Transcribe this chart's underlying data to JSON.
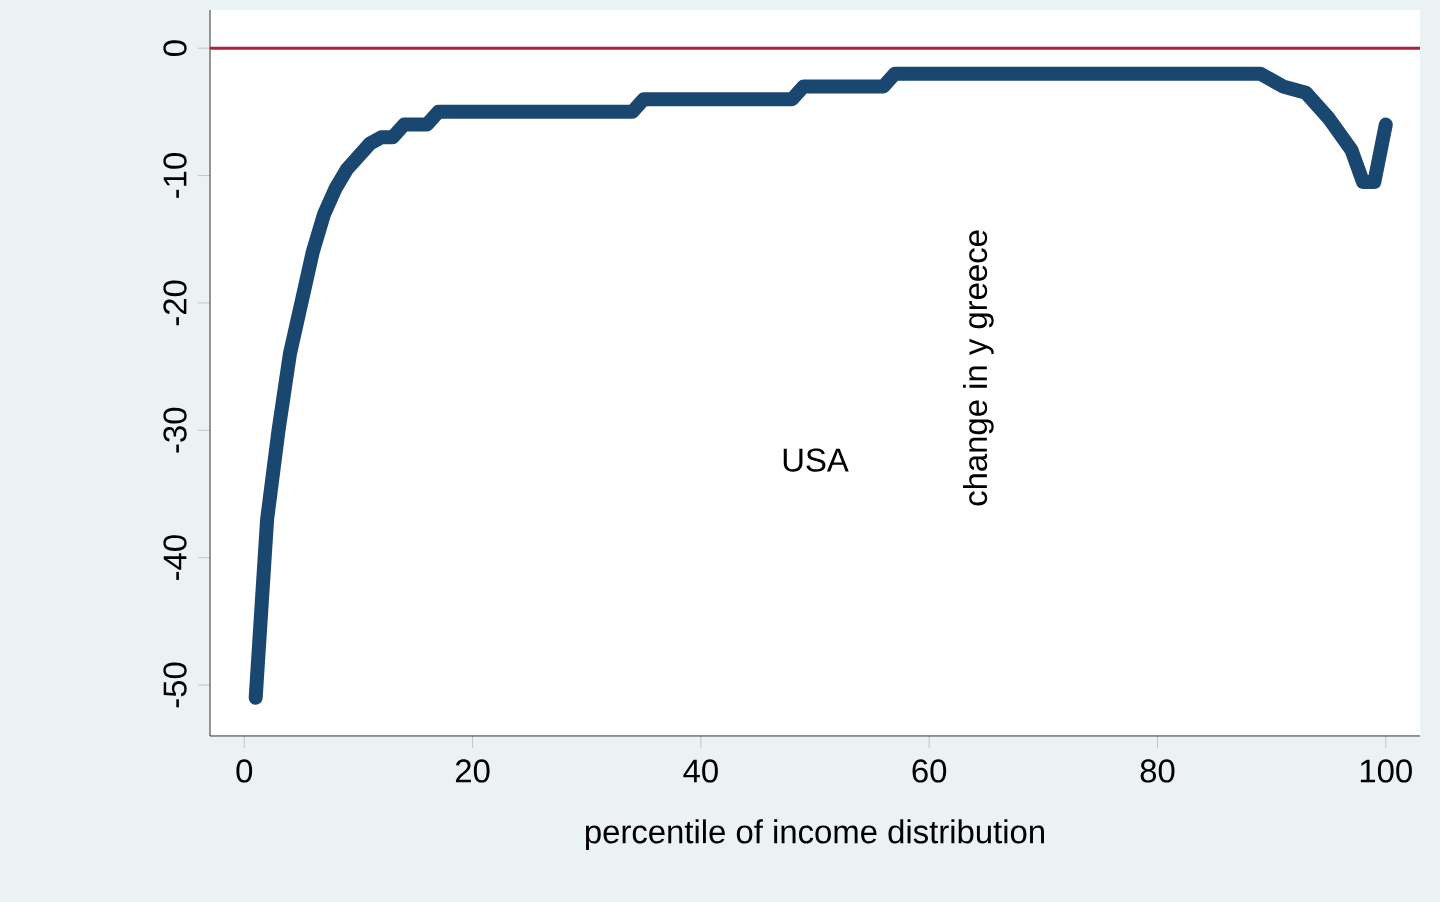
{
  "chart_data": {
    "type": "line",
    "xlabel": "percentile of income distribution",
    "ylabel": "change in y greece",
    "annotations": [
      "USA"
    ],
    "series": [
      {
        "color": "#1a476f",
        "x": [
          1,
          2,
          3,
          4,
          5,
          6,
          7,
          8,
          9,
          10,
          11,
          12,
          13,
          14,
          16,
          17,
          34,
          35,
          48,
          49,
          56,
          57,
          89,
          91,
          93,
          95,
          97,
          98,
          99,
          100
        ],
        "values": [
          -51,
          -37,
          -30,
          -24,
          -20,
          -16,
          -13,
          -11,
          -9.5,
          -8.5,
          -7.5,
          -7,
          -7,
          -6,
          -6,
          -5,
          -5,
          -4,
          -4,
          -3,
          -3,
          -2,
          -2,
          -3,
          -3.5,
          -5.5,
          -8,
          -10.5,
          -10.5,
          -6
        ]
      }
    ],
    "xlim": [
      -3,
      103
    ],
    "ylim": [
      -54,
      3
    ],
    "xticks": [
      0,
      20,
      40,
      60,
      80,
      100
    ],
    "yticks": [
      -50,
      -40,
      -30,
      -20,
      -10,
      0
    ],
    "ref_lines": [
      {
        "axis": "y",
        "value": 0,
        "color": "#b0203a"
      }
    ],
    "grid": false,
    "line_style": "solid",
    "marker": "none"
  }
}
